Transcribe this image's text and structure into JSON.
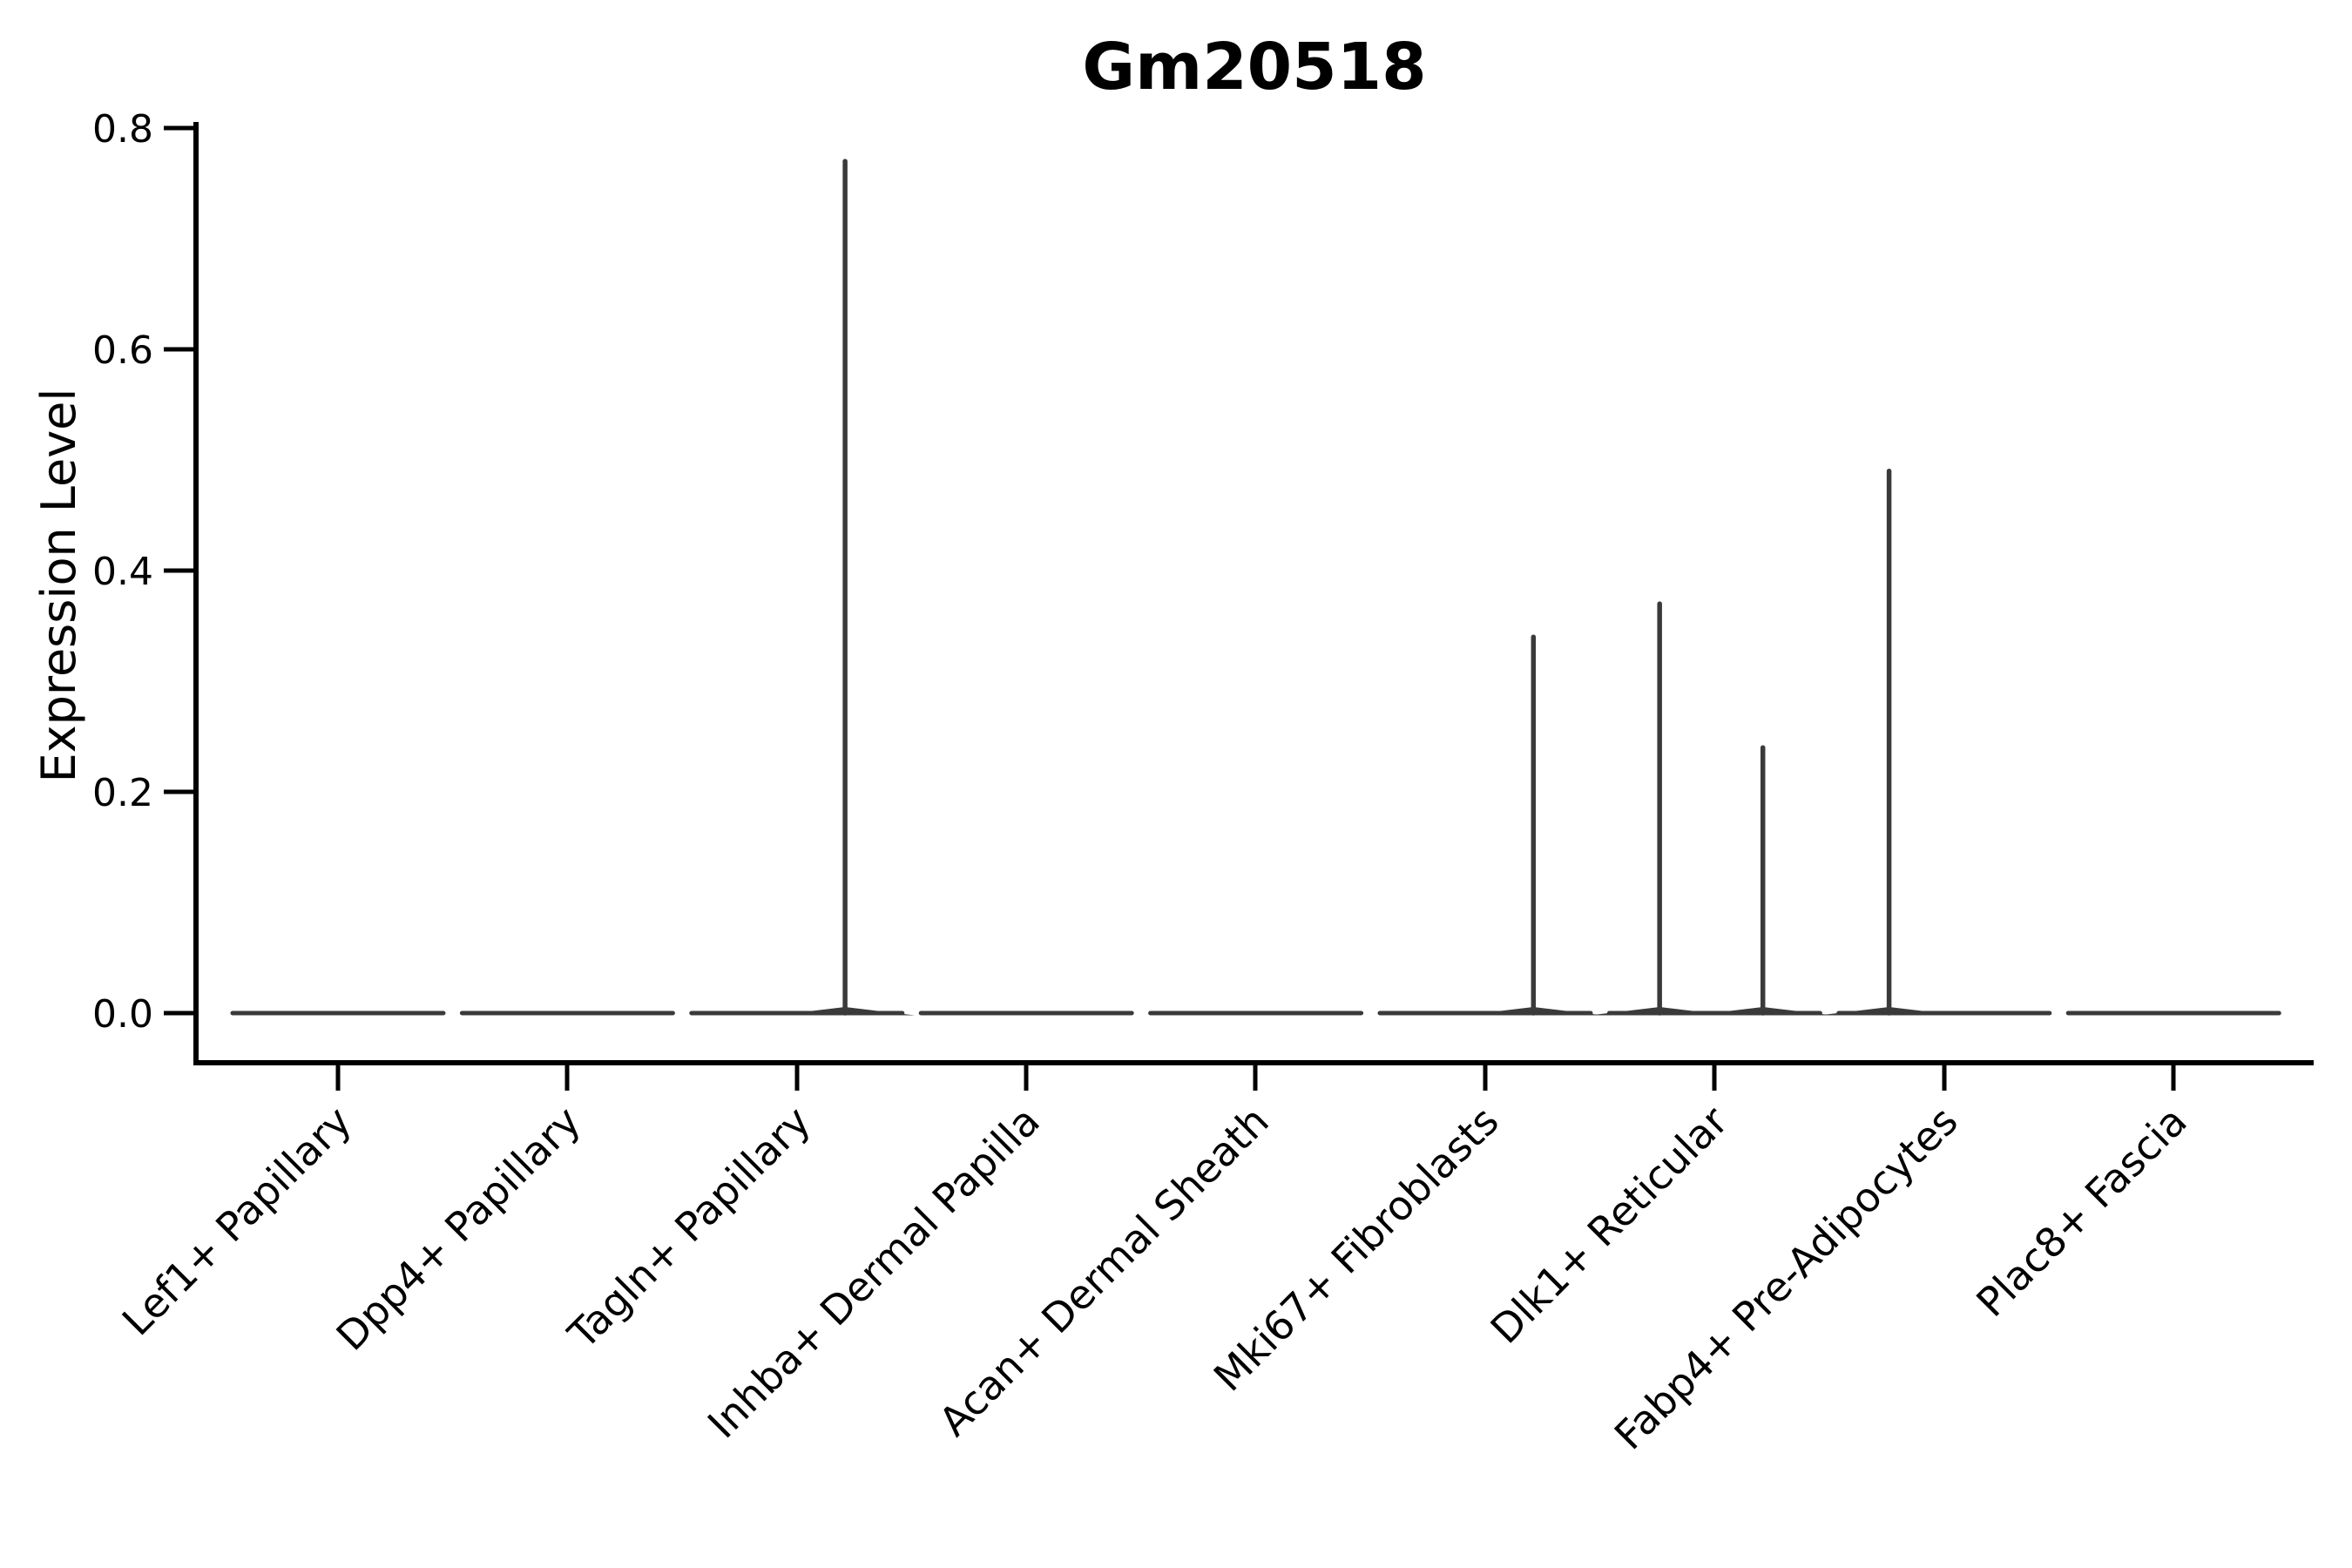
{
  "title": "Gm20518",
  "chart_data": {
    "type": "violin",
    "title": "Gm20518",
    "xlabel": "",
    "ylabel": "Expression Level",
    "ylim": [
      0,
      0.8
    ],
    "ytick_labels": [
      "0.0",
      "0.2",
      "0.4",
      "0.6",
      "0.8"
    ],
    "ytick_values": [
      0.0,
      0.2,
      0.4,
      0.6,
      0.8
    ],
    "grid": false,
    "legend_position": "none",
    "background_color": "#ffffff",
    "violin_color": "#3a3a3a",
    "axis_color": "#000000",
    "categories": [
      "Lef1+ Papillary",
      "Dpp4+ Papillary",
      "Tagln+ Papillary",
      "Inhba+ Dermal Papilla",
      "Acan+ Dermal Sheath",
      "Mki67+ Fibroblasts",
      "Dlk1+ Reticular",
      "Fabp4+ Pre-Adipocytes",
      "Plac8+ Fascia"
    ],
    "violins": [
      {
        "category": "Lef1+ Papillary",
        "body_value": 0.0,
        "spikes": []
      },
      {
        "category": "Dpp4+ Papillary",
        "body_value": 0.0,
        "spikes": []
      },
      {
        "category": "Tagln+ Papillary",
        "body_value": 0.0,
        "spikes": [
          {
            "x_offset": 0.21,
            "max_value": 0.77
          }
        ]
      },
      {
        "category": "Inhba+ Dermal Papilla",
        "body_value": 0.0,
        "spikes": []
      },
      {
        "category": "Acan+ Dermal Sheath",
        "body_value": 0.0,
        "spikes": []
      },
      {
        "category": "Mki67+ Fibroblasts",
        "body_value": 0.0,
        "spikes": [
          {
            "x_offset": 0.21,
            "max_value": 0.34
          }
        ]
      },
      {
        "category": "Dlk1+ Reticular",
        "body_value": 0.0,
        "spikes": [
          {
            "x_offset": -0.24,
            "max_value": 0.37
          },
          {
            "x_offset": 0.21,
            "max_value": 0.24
          }
        ]
      },
      {
        "category": "Fabp4+ Pre-Adipocytes",
        "body_value": 0.0,
        "spikes": [
          {
            "x_offset": -0.24,
            "max_value": 0.49
          }
        ]
      },
      {
        "category": "Plac8+ Fascia",
        "body_value": 0.0,
        "spikes": []
      }
    ]
  }
}
